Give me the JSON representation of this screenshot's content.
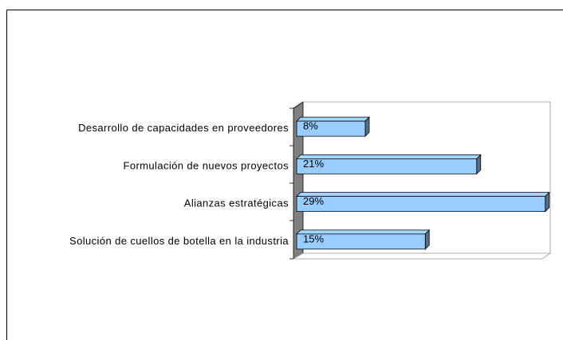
{
  "chart_data": {
    "type": "bar",
    "categories": [
      "Desarrollo de capacidades en proveedores",
      "Formulación de nuevos proyectos",
      "Alianzas estratégicas",
      "Solución de cuellos de botella en la industria"
    ],
    "values": [
      8,
      21,
      29,
      15
    ],
    "value_labels": [
      "8%",
      "21%",
      "29%",
      "15%"
    ],
    "color": "#99ccff"
  }
}
